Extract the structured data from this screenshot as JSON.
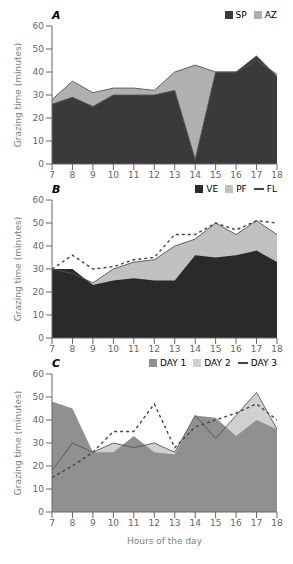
{
  "chart_data": [
    {
      "type": "area",
      "title": "A",
      "x": [
        7,
        8,
        9,
        10,
        11,
        12,
        13,
        14,
        15,
        16,
        17,
        18
      ],
      "xlim": [
        7,
        18
      ],
      "xticks": [
        7,
        8,
        9,
        10,
        11,
        12,
        13,
        14,
        15,
        16,
        17,
        18
      ],
      "ylim": [
        0,
        60
      ],
      "yticks": [
        0,
        10,
        20,
        30,
        40,
        50,
        60
      ],
      "ylabel": "Grazing time (minutes)",
      "grid": false,
      "legend": "top",
      "series": [
        {
          "name": "SP",
          "type": "area",
          "color": "#3a3a3a",
          "line_style": "solid",
          "values": [
            26,
            29,
            25,
            30,
            30,
            30,
            32,
            2,
            40,
            40,
            47,
            38
          ]
        },
        {
          "name": "AZ",
          "type": "area",
          "color": "#b0b0b0",
          "line_style": "solid",
          "values": [
            28,
            36,
            31,
            33,
            33,
            32,
            40,
            43,
            40,
            40,
            45,
            39
          ]
        }
      ]
    },
    {
      "type": "area",
      "title": "B",
      "x": [
        7,
        8,
        9,
        10,
        11,
        12,
        13,
        14,
        15,
        16,
        17,
        18
      ],
      "xlim": [
        7,
        18
      ],
      "xticks": [
        7,
        8,
        9,
        10,
        11,
        12,
        13,
        14,
        15,
        16,
        17,
        18
      ],
      "ylim": [
        0,
        60
      ],
      "yticks": [
        0,
        10,
        20,
        30,
        40,
        50,
        60
      ],
      "ylabel": "Grazing time (minutes)",
      "grid": false,
      "legend": "top",
      "series": [
        {
          "name": "VE",
          "type": "area",
          "color": "#2a2a2a",
          "values": [
            30,
            30,
            23,
            25,
            26,
            25,
            25,
            36,
            35,
            36,
            38,
            33
          ]
        },
        {
          "name": "PF",
          "type": "area",
          "color": "#c0c0c0",
          "line_style": "solid",
          "values": [
            30,
            28,
            24,
            30,
            33,
            34,
            40,
            43,
            50,
            45,
            51,
            45
          ]
        },
        {
          "name": "FL",
          "type": "line",
          "color": "#444444",
          "line_style": "dashed",
          "values": [
            30,
            36,
            30,
            31,
            34,
            35,
            45,
            45,
            50,
            47,
            51,
            50
          ]
        }
      ]
    },
    {
      "type": "area",
      "title": "C",
      "x": [
        7,
        8,
        9,
        10,
        11,
        12,
        13,
        14,
        15,
        16,
        17,
        18
      ],
      "xlim": [
        7,
        18
      ],
      "xticks": [
        7,
        8,
        9,
        10,
        11,
        12,
        13,
        14,
        15,
        16,
        17,
        18
      ],
      "ylim": [
        0,
        60
      ],
      "yticks": [
        0,
        10,
        20,
        30,
        40,
        50,
        60
      ],
      "ylabel": "Grazing time (minutes)",
      "xlabel": "Hours of the day",
      "grid": false,
      "legend": "top",
      "series": [
        {
          "name": "DAY 1",
          "type": "area",
          "color": "#909090",
          "values": [
            48,
            45,
            26,
            26,
            33,
            26,
            25,
            42,
            41,
            33,
            40,
            36
          ]
        },
        {
          "name": "DAY 2",
          "type": "area",
          "color": "#d0d0d0",
          "line_style": "solid",
          "values": [
            18,
            30,
            26,
            30,
            28,
            30,
            26,
            42,
            32,
            42,
            52,
            36
          ]
        },
        {
          "name": "DAY 3",
          "type": "line",
          "color": "#444444",
          "line_style": "dashed",
          "values": [
            15,
            20,
            26,
            35,
            35,
            47,
            28,
            37,
            40,
            43,
            47,
            40
          ]
        }
      ]
    }
  ]
}
